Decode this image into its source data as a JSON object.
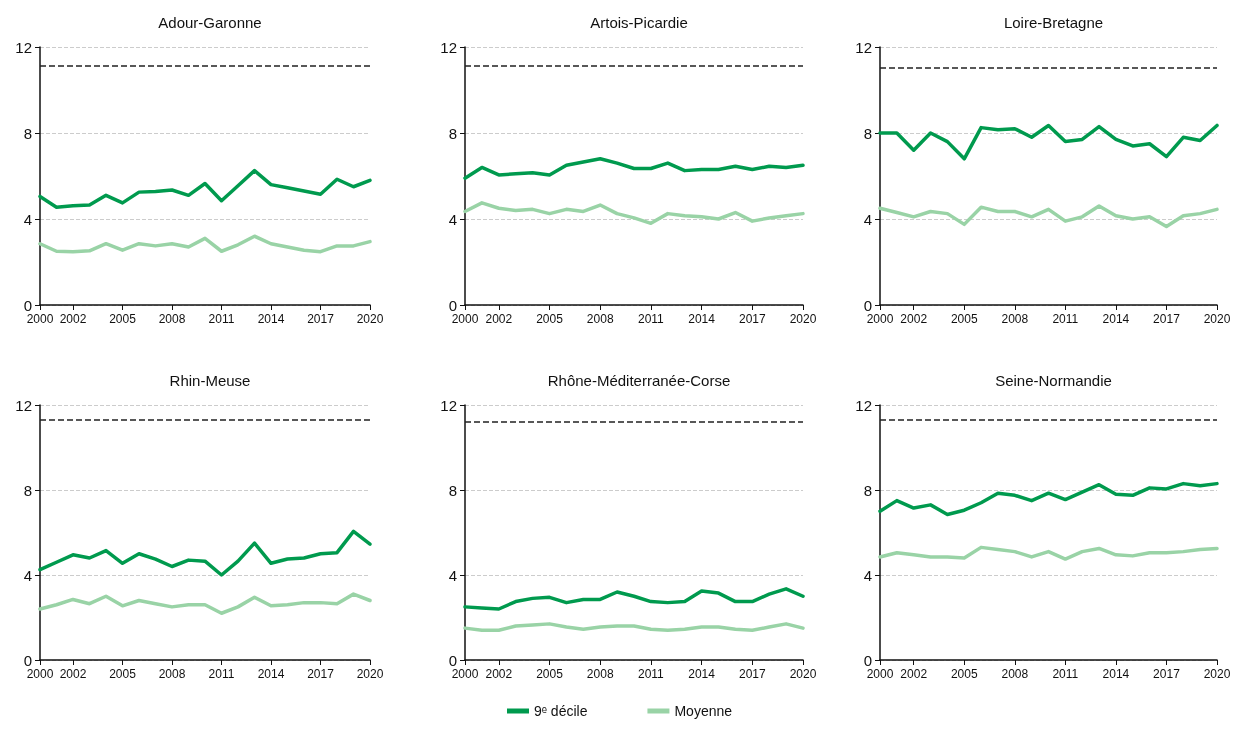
{
  "chart_data": [
    {
      "type": "line",
      "title": "Adour-Garonne",
      "x": [
        2000,
        2001,
        2002,
        2003,
        2004,
        2005,
        2006,
        2007,
        2008,
        2009,
        2010,
        2011,
        2012,
        2013,
        2014,
        2015,
        2016,
        2017,
        2018,
        2019,
        2020
      ],
      "xlim": [
        2000,
        2020
      ],
      "xticks": [
        2000,
        2002,
        2005,
        2008,
        2011,
        2014,
        2017,
        2020
      ],
      "ylim": [
        0,
        12
      ],
      "yticks": [
        0,
        4,
        8,
        12
      ],
      "grid": "y",
      "legend": false,
      "line_style": "solid",
      "series": [
        {
          "color": "#009a4e",
          "values": [
            5.05,
            4.55,
            4.62,
            4.65,
            5.1,
            4.75,
            5.25,
            5.28,
            5.35,
            5.1,
            5.65,
            4.85,
            5.55,
            6.25,
            5.6,
            5.45,
            5.3,
            5.15,
            5.85,
            5.5,
            5.8
          ]
        },
        {
          "color": "#99d3a6",
          "values": [
            2.85,
            2.5,
            2.48,
            2.52,
            2.85,
            2.55,
            2.85,
            2.75,
            2.85,
            2.7,
            3.1,
            2.5,
            2.8,
            3.2,
            2.85,
            2.7,
            2.55,
            2.48,
            2.75,
            2.75,
            2.95
          ]
        }
      ],
      "ref_lines": [
        {
          "axis": "y",
          "value": 11.15,
          "color": "#222222",
          "line_style": "dashed"
        }
      ]
    },
    {
      "type": "line",
      "title": "Artois-Picardie",
      "x": [
        2000,
        2001,
        2002,
        2003,
        2004,
        2005,
        2006,
        2007,
        2008,
        2009,
        2010,
        2011,
        2012,
        2013,
        2014,
        2015,
        2016,
        2017,
        2018,
        2019,
        2020
      ],
      "xlim": [
        2000,
        2020
      ],
      "xticks": [
        2000,
        2002,
        2005,
        2008,
        2011,
        2014,
        2017,
        2020
      ],
      "ylim": [
        0,
        12
      ],
      "yticks": [
        0,
        4,
        8,
        12
      ],
      "grid": "y",
      "legend": false,
      "line_style": "solid",
      "series": [
        {
          "color": "#009a4e",
          "values": [
            5.9,
            6.4,
            6.05,
            6.1,
            6.15,
            6.05,
            6.5,
            6.65,
            6.8,
            6.6,
            6.35,
            6.35,
            6.6,
            6.25,
            6.3,
            6.3,
            6.45,
            6.3,
            6.45,
            6.4,
            6.5
          ]
        },
        {
          "color": "#99d3a6",
          "values": [
            4.35,
            4.75,
            4.5,
            4.4,
            4.45,
            4.25,
            4.45,
            4.35,
            4.65,
            4.25,
            4.05,
            3.8,
            4.25,
            4.15,
            4.1,
            4.0,
            4.3,
            3.9,
            4.05,
            4.15,
            4.25
          ]
        }
      ],
      "ref_lines": [
        {
          "axis": "y",
          "value": 11.15,
          "color": "#222222",
          "line_style": "dashed"
        }
      ]
    },
    {
      "type": "line",
      "title": "Loire-Bretagne",
      "x": [
        2000,
        2001,
        2002,
        2003,
        2004,
        2005,
        2006,
        2007,
        2008,
        2009,
        2010,
        2011,
        2012,
        2013,
        2014,
        2015,
        2016,
        2017,
        2018,
        2019,
        2020
      ],
      "xlim": [
        2000,
        2020
      ],
      "xticks": [
        2000,
        2002,
        2005,
        2008,
        2011,
        2014,
        2017,
        2020
      ],
      "ylim": [
        0,
        12
      ],
      "yticks": [
        0,
        4,
        8,
        12
      ],
      "grid": "y",
      "legend": false,
      "line_style": "solid",
      "series": [
        {
          "color": "#009a4e",
          "values": [
            8.0,
            8.0,
            7.2,
            8.0,
            7.6,
            6.8,
            8.25,
            8.15,
            8.2,
            7.8,
            8.35,
            7.6,
            7.7,
            8.3,
            7.7,
            7.4,
            7.5,
            6.9,
            7.8,
            7.65,
            8.35
          ]
        },
        {
          "color": "#99d3a6",
          "values": [
            4.5,
            4.3,
            4.1,
            4.35,
            4.25,
            3.75,
            4.55,
            4.35,
            4.35,
            4.1,
            4.45,
            3.9,
            4.1,
            4.6,
            4.15,
            4.0,
            4.1,
            3.65,
            4.15,
            4.25,
            4.45
          ]
        }
      ],
      "ref_lines": [
        {
          "axis": "y",
          "value": 11.05,
          "color": "#222222",
          "line_style": "dashed"
        }
      ]
    },
    {
      "type": "line",
      "title": "Rhin-Meuse",
      "x": [
        2000,
        2001,
        2002,
        2003,
        2004,
        2005,
        2006,
        2007,
        2008,
        2009,
        2010,
        2011,
        2012,
        2013,
        2014,
        2015,
        2016,
        2017,
        2018,
        2019,
        2020
      ],
      "xlim": [
        2000,
        2020
      ],
      "xticks": [
        2000,
        2002,
        2005,
        2008,
        2011,
        2014,
        2017,
        2020
      ],
      "ylim": [
        0,
        12
      ],
      "yticks": [
        0,
        4,
        8,
        12
      ],
      "grid": "y",
      "legend": false,
      "line_style": "solid",
      "series": [
        {
          "color": "#009a4e",
          "values": [
            4.25,
            4.6,
            4.95,
            4.8,
            5.15,
            4.55,
            5.0,
            4.75,
            4.4,
            4.7,
            4.65,
            4.0,
            4.65,
            5.5,
            4.55,
            4.75,
            4.8,
            5.0,
            5.05,
            6.05,
            5.45
          ]
        },
        {
          "color": "#99d3a6",
          "values": [
            2.4,
            2.6,
            2.85,
            2.65,
            3.0,
            2.55,
            2.8,
            2.65,
            2.5,
            2.6,
            2.6,
            2.2,
            2.5,
            2.95,
            2.55,
            2.6,
            2.7,
            2.7,
            2.65,
            3.1,
            2.8
          ]
        }
      ],
      "ref_lines": [
        {
          "axis": "y",
          "value": 11.3,
          "color": "#222222",
          "line_style": "dashed"
        }
      ]
    },
    {
      "type": "line",
      "title": "Rhône-Méditerranée-Corse",
      "x": [
        2000,
        2001,
        2002,
        2003,
        2004,
        2005,
        2006,
        2007,
        2008,
        2009,
        2010,
        2011,
        2012,
        2013,
        2014,
        2015,
        2016,
        2017,
        2018,
        2019,
        2020
      ],
      "xlim": [
        2000,
        2020
      ],
      "xticks": [
        2000,
        2002,
        2005,
        2008,
        2011,
        2014,
        2017,
        2020
      ],
      "ylim": [
        0,
        12
      ],
      "yticks": [
        0,
        4,
        8,
        12
      ],
      "grid": "y",
      "legend": "bottom",
      "line_style": "solid",
      "series": [
        {
          "name": "9ᵉ décile",
          "color": "#009a4e",
          "values": [
            2.5,
            2.45,
            2.4,
            2.75,
            2.9,
            2.95,
            2.7,
            2.85,
            2.85,
            3.2,
            3.0,
            2.75,
            2.7,
            2.75,
            3.25,
            3.15,
            2.75,
            2.75,
            3.1,
            3.35,
            3.0
          ]
        },
        {
          "name": "Moyenne",
          "color": "#99d3a6",
          "values": [
            1.5,
            1.4,
            1.4,
            1.6,
            1.65,
            1.7,
            1.55,
            1.45,
            1.55,
            1.6,
            1.6,
            1.45,
            1.4,
            1.45,
            1.55,
            1.55,
            1.45,
            1.4,
            1.55,
            1.7,
            1.5
          ]
        }
      ],
      "ref_lines": [
        {
          "axis": "y",
          "value": 11.2,
          "color": "#222222",
          "line_style": "dashed"
        }
      ]
    },
    {
      "type": "line",
      "title": "Seine-Normandie",
      "x": [
        2000,
        2001,
        2002,
        2003,
        2004,
        2005,
        2006,
        2007,
        2008,
        2009,
        2010,
        2011,
        2012,
        2013,
        2014,
        2015,
        2016,
        2017,
        2018,
        2019,
        2020
      ],
      "xlim": [
        2000,
        2020
      ],
      "xticks": [
        2000,
        2002,
        2005,
        2008,
        2011,
        2014,
        2017,
        2020
      ],
      "ylim": [
        0,
        12
      ],
      "yticks": [
        0,
        4,
        8,
        12
      ],
      "grid": "y",
      "legend": false,
      "line_style": "solid",
      "series": [
        {
          "color": "#009a4e",
          "values": [
            7.0,
            7.5,
            7.15,
            7.3,
            6.85,
            7.05,
            7.4,
            7.85,
            7.75,
            7.5,
            7.85,
            7.55,
            7.9,
            8.25,
            7.8,
            7.75,
            8.1,
            8.05,
            8.3,
            8.2,
            8.3
          ]
        },
        {
          "color": "#99d3a6",
          "values": [
            4.85,
            5.05,
            4.95,
            4.85,
            4.85,
            4.8,
            5.3,
            5.2,
            5.1,
            4.85,
            5.1,
            4.75,
            5.1,
            5.25,
            4.95,
            4.9,
            5.05,
            5.05,
            5.1,
            5.2,
            5.25
          ]
        }
      ],
      "ref_lines": [
        {
          "axis": "y",
          "value": 11.3,
          "color": "#222222",
          "line_style": "dashed"
        }
      ]
    }
  ]
}
